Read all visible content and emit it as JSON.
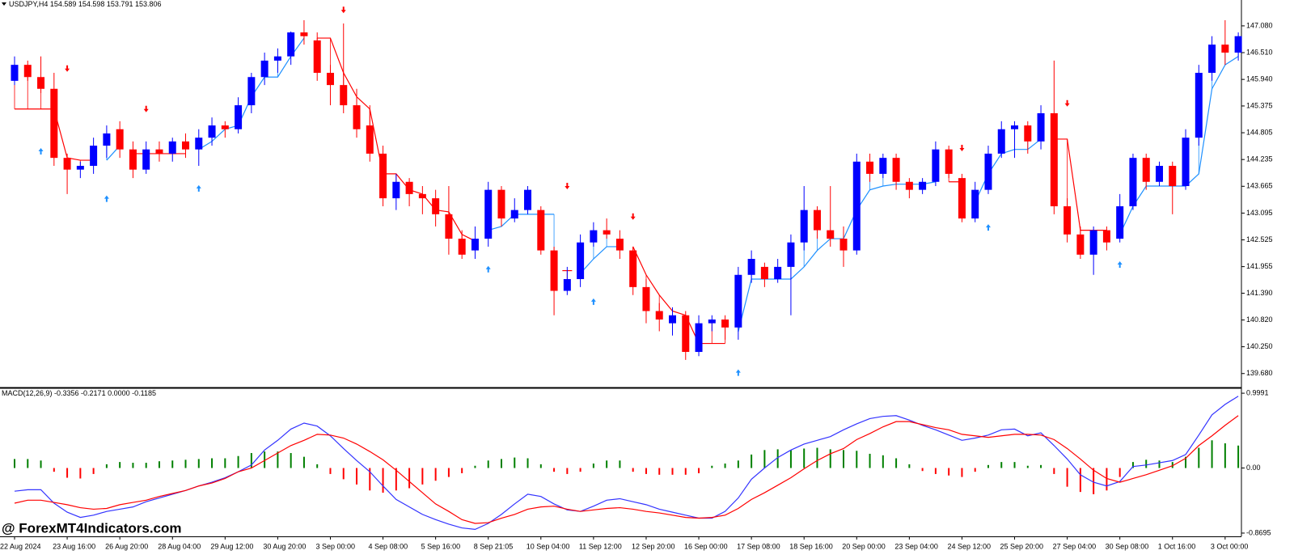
{
  "chart_data": [
    {
      "type": "candlestick",
      "title": "USDJPY,H4  154.589 154.598 153.791 153.806",
      "categories": [
        "22 Aug 2024",
        null,
        null,
        null,
        "23 Aug 16:00",
        null,
        null,
        null,
        "26 Aug 20:00",
        null,
        null,
        null,
        "28 Aug 04:00",
        null,
        null,
        null,
        "29 Aug 12:00",
        null,
        null,
        null,
        "30 Aug 20:00",
        null,
        null,
        null,
        "3 Sep 00:00",
        null,
        null,
        null,
        "4 Sep 08:00",
        null,
        null,
        null,
        "5 Sep 16:00",
        null,
        null,
        null,
        "8 Sep 21:05",
        null,
        null,
        null,
        "10 Sep 04:00",
        null,
        null,
        null,
        "11 Sep 12:00",
        null,
        null,
        null,
        "12 Sep 20:00",
        null,
        null,
        null,
        "16 Sep 00:00",
        null,
        null,
        null,
        "17 Sep 08:00",
        null,
        null,
        null,
        "18 Sep 16:00",
        null,
        null,
        null,
        "20 Sep 00:00",
        null,
        null,
        null,
        "23 Sep 04:00",
        null,
        null,
        null,
        "24 Sep 12:00",
        null,
        null,
        null,
        "25 Sep 20:00",
        null,
        null,
        null,
        "27 Sep 04:00",
        null,
        null,
        null,
        "30 Sep 08:00",
        null,
        null,
        null,
        "1 Oct 16:00",
        null,
        null,
        null,
        "3 Oct 00:00",
        null
      ],
      "open": [
        145.91,
        146.25,
        145.99,
        145.74,
        144.27,
        144.02,
        144.1,
        144.53,
        144.88,
        144.45,
        144.02,
        144.45,
        144.36,
        144.62,
        144.45,
        144.7,
        144.96,
        144.88,
        145.39,
        145.99,
        146.34,
        146.43,
        146.94,
        146.77,
        146.08,
        145.82,
        145.39,
        144.96,
        144.36,
        143.41,
        143.76,
        143.5,
        143.41,
        143.07,
        142.55,
        142.3,
        142.55,
        143.59,
        142.98,
        143.16,
        143.16,
        142.3,
        141.44,
        141.69,
        142.47,
        142.73,
        142.55,
        142.3,
        141.52,
        141.01,
        140.75,
        140.92,
        140.14,
        140.75,
        140.83,
        140.66,
        141.78,
        141.95,
        141.69,
        141.95,
        142.47,
        143.16,
        142.73,
        142.55,
        142.3,
        144.19,
        143.93,
        144.27,
        143.76,
        143.59,
        143.76,
        144.45,
        143.84,
        142.98,
        143.59,
        144.36,
        144.88,
        144.96,
        144.62,
        145.22,
        143.24,
        142.64,
        142.21,
        142.73,
        142.55,
        143.24,
        144.27,
        143.76,
        144.1,
        143.67,
        144.7,
        146.08,
        146.68,
        146.51
      ],
      "high": [
        146.43,
        146.34,
        146.43,
        146.08,
        144.36,
        144.19,
        144.7,
        144.96,
        145.05,
        144.62,
        144.62,
        144.62,
        144.7,
        144.79,
        144.88,
        145.13,
        145.05,
        145.56,
        146.08,
        146.51,
        146.6,
        146.96,
        147.2,
        146.94,
        146.25,
        147.13,
        145.74,
        145.39,
        144.53,
        143.93,
        143.84,
        143.67,
        143.59,
        143.67,
        142.73,
        142.81,
        143.76,
        143.67,
        143.41,
        143.67,
        143.24,
        142.38,
        141.95,
        142.64,
        142.9,
        142.98,
        142.73,
        142.38,
        141.69,
        141.18,
        141.09,
        141.01,
        140.92,
        140.92,
        140.92,
        141.95,
        142.3,
        142.04,
        142.12,
        142.64,
        143.67,
        143.24,
        143.67,
        142.81,
        144.36,
        144.36,
        144.36,
        144.36,
        143.84,
        143.84,
        144.62,
        144.53,
        143.93,
        143.76,
        144.53,
        145.05,
        145.05,
        145.05,
        145.39,
        146.34,
        143.41,
        142.81,
        142.81,
        142.81,
        143.5,
        144.36,
        144.36,
        144.19,
        144.19,
        144.88,
        146.25,
        146.86,
        147.2,
        146.94
      ],
      "low": [
        145.82,
        145.91,
        145.65,
        144.1,
        143.5,
        143.84,
        143.93,
        144.27,
        144.27,
        143.84,
        143.93,
        144.19,
        144.19,
        144.27,
        144.1,
        144.53,
        144.7,
        144.79,
        145.22,
        145.82,
        146.08,
        146.25,
        146.68,
        145.91,
        145.39,
        145.22,
        144.7,
        144.19,
        143.24,
        143.16,
        143.24,
        143.07,
        142.81,
        142.21,
        142.12,
        142.12,
        142.38,
        142.81,
        142.9,
        143.07,
        142.21,
        140.92,
        141.35,
        141.52,
        142.38,
        142.55,
        142.12,
        141.35,
        140.75,
        140.58,
        140.49,
        139.97,
        140.05,
        140.58,
        140.4,
        140.4,
        141.61,
        141.52,
        141.61,
        140.92,
        142.3,
        142.55,
        142.38,
        141.95,
        142.21,
        143.76,
        143.84,
        143.59,
        143.41,
        143.5,
        143.67,
        143.84,
        142.9,
        142.9,
        143.5,
        144.27,
        144.27,
        144.36,
        144.45,
        143.07,
        142.47,
        142.12,
        141.78,
        142.3,
        142.47,
        143.16,
        143.59,
        143.67,
        143.07,
        143.59,
        144.53,
        145.91,
        146.25,
        146.34
      ],
      "close": [
        146.25,
        145.99,
        145.74,
        144.27,
        144.02,
        144.1,
        144.53,
        144.79,
        144.45,
        144.02,
        144.45,
        144.36,
        144.62,
        144.45,
        144.7,
        144.96,
        144.88,
        145.39,
        145.99,
        146.34,
        146.43,
        146.94,
        146.86,
        146.08,
        145.82,
        145.39,
        144.88,
        144.36,
        143.41,
        143.76,
        143.5,
        143.41,
        143.07,
        142.55,
        142.21,
        142.55,
        143.59,
        142.98,
        143.16,
        143.59,
        142.3,
        141.44,
        141.69,
        142.47,
        142.73,
        142.64,
        142.3,
        141.52,
        141.01,
        140.83,
        140.92,
        140.14,
        140.75,
        140.83,
        140.66,
        141.78,
        142.12,
        141.69,
        141.95,
        142.47,
        143.16,
        142.73,
        142.55,
        142.3,
        144.19,
        143.93,
        144.27,
        143.76,
        143.59,
        143.76,
        144.45,
        143.93,
        142.98,
        143.59,
        144.36,
        144.88,
        144.96,
        144.62,
        145.22,
        143.24,
        142.64,
        142.21,
        142.73,
        142.47,
        143.24,
        144.27,
        143.76,
        144.1,
        143.67,
        144.7,
        146.08,
        146.68,
        146.51,
        146.86
      ],
      "trend_up": [
        null,
        null,
        null,
        null,
        null,
        null,
        null,
        144.22,
        144.53,
        null,
        null,
        null,
        null,
        null,
        144.45,
        144.62,
        144.88,
        144.96,
        145.57,
        145.99,
        145.99,
        146.43,
        146.82,
        null,
        null,
        null,
        null,
        null,
        null,
        null,
        null,
        null,
        null,
        null,
        null,
        null,
        142.73,
        142.81,
        143.07,
        143.07,
        143.07,
        143.07,
        null,
        141.81,
        142.12,
        142.38,
        142.38,
        null,
        null,
        null,
        null,
        null,
        null,
        null,
        null,
        140.57,
        141.69,
        141.69,
        141.69,
        141.69,
        141.95,
        142.3,
        142.55,
        142.55,
        143.16,
        143.59,
        143.67,
        143.71,
        143.71,
        143.71,
        143.76,
        null,
        null,
        143.33,
        143.93,
        144.36,
        144.45,
        144.45,
        144.67,
        null,
        null,
        null,
        null,
        null,
        142.64,
        143.24,
        143.67,
        143.67,
        143.67,
        143.67,
        143.93,
        145.74,
        146.25,
        146.43
      ],
      "trend_down": [
        145.31,
        145.31,
        145.31,
        145.31,
        144.27,
        144.22,
        144.22,
        null,
        null,
        144.36,
        144.36,
        144.36,
        144.36,
        144.36,
        null,
        null,
        null,
        null,
        null,
        null,
        null,
        null,
        null,
        146.82,
        146.82,
        146.08,
        145.57,
        145.31,
        143.93,
        143.93,
        143.59,
        143.5,
        143.16,
        143.12,
        142.64,
        142.5,
        null,
        null,
        null,
        null,
        null,
        null,
        141.87,
        null,
        null,
        null,
        null,
        142.38,
        141.78,
        141.35,
        141.01,
        140.92,
        140.32,
        140.32,
        140.32,
        null,
        null,
        null,
        null,
        null,
        null,
        null,
        null,
        null,
        null,
        null,
        null,
        null,
        null,
        null,
        null,
        143.76,
        143.76,
        null,
        null,
        null,
        null,
        null,
        null,
        144.67,
        144.67,
        142.73,
        142.73,
        142.73,
        null,
        null,
        null,
        null,
        null,
        null,
        null,
        null,
        null,
        null
      ],
      "buy_signals": [
        null,
        null,
        144.41,
        null,
        null,
        null,
        null,
        143.4,
        null,
        null,
        null,
        null,
        null,
        null,
        143.62,
        null,
        null,
        null,
        null,
        null,
        null,
        null,
        null,
        null,
        null,
        null,
        null,
        null,
        null,
        null,
        null,
        null,
        null,
        null,
        null,
        null,
        141.9,
        null,
        null,
        null,
        null,
        null,
        null,
        null,
        141.21,
        null,
        null,
        null,
        null,
        null,
        null,
        null,
        null,
        null,
        null,
        139.7,
        null,
        null,
        null,
        null,
        null,
        null,
        null,
        null,
        null,
        null,
        null,
        null,
        null,
        null,
        null,
        null,
        null,
        null,
        142.79,
        null,
        null,
        null,
        null,
        null,
        null,
        null,
        null,
        null,
        142.0,
        null,
        null,
        null,
        null,
        null,
        null,
        null,
        null,
        null
      ],
      "sell_signals": [
        null,
        null,
        null,
        null,
        146.17,
        null,
        null,
        null,
        null,
        null,
        145.31,
        null,
        null,
        null,
        null,
        null,
        null,
        null,
        null,
        null,
        null,
        null,
        null,
        null,
        null,
        147.42,
        null,
        null,
        null,
        null,
        null,
        null,
        null,
        null,
        null,
        null,
        null,
        null,
        null,
        null,
        null,
        null,
        143.67,
        null,
        null,
        null,
        null,
        143.02,
        null,
        null,
        null,
        null,
        null,
        null,
        null,
        null,
        null,
        null,
        null,
        null,
        null,
        null,
        null,
        null,
        null,
        null,
        null,
        null,
        null,
        null,
        null,
        null,
        144.48,
        null,
        null,
        null,
        null,
        null,
        null,
        null,
        145.43,
        null,
        null,
        null,
        null,
        null,
        null,
        null,
        null,
        null,
        null,
        null,
        null,
        null
      ],
      "up_color": "#0000ff",
      "down_color": "#ff0000",
      "trend_up_color": "#1e90ff",
      "trend_down_color": "#ff0000",
      "ylim": [
        139.4,
        147.63
      ],
      "yticks": [
        {
          "value": 147.08,
          "label": "147.080"
        },
        {
          "value": 146.51,
          "label": "146.510"
        },
        {
          "value": 145.94,
          "label": "145.940"
        },
        145.375,
        144.805,
        144.235,
        143.665,
        143.095,
        142.525,
        141.955,
        {
          "value": 141.39,
          "label": "141.390"
        },
        {
          "value": 140.82,
          "label": "140.820"
        },
        {
          "value": 140.25,
          "label": "140.250"
        },
        {
          "value": 139.68,
          "label": "139.680"
        }
      ]
    },
    {
      "type": "macd",
      "title": "MACD(12,26,9) -0.3356 -0.2171 0.0000 -0.1185",
      "histogram": [
        0.12,
        0.12,
        0.1,
        -0.05,
        -0.13,
        -0.14,
        -0.08,
        0.05,
        0.08,
        0.07,
        0.07,
        0.09,
        0.1,
        0.11,
        0.12,
        0.13,
        0.13,
        0.16,
        0.2,
        0.22,
        0.22,
        0.2,
        0.15,
        0.05,
        -0.08,
        -0.15,
        -0.22,
        -0.3,
        -0.33,
        -0.3,
        -0.27,
        -0.22,
        -0.17,
        -0.12,
        -0.07,
        0.03,
        0.1,
        0.12,
        0.14,
        0.13,
        0.05,
        -0.05,
        -0.08,
        -0.05,
        0.06,
        0.1,
        0.1,
        -0.05,
        -0.08,
        -0.09,
        -0.09,
        -0.09,
        -0.07,
        0.03,
        0.06,
        0.1,
        0.18,
        0.24,
        0.25,
        0.24,
        0.26,
        0.27,
        0.25,
        0.24,
        0.23,
        0.19,
        0.17,
        0.13,
        0.05,
        -0.04,
        -0.08,
        -0.1,
        -0.12,
        -0.05,
        0.04,
        0.08,
        0.08,
        0.03,
        0.04,
        -0.08,
        -0.25,
        -0.32,
        -0.35,
        -0.3,
        -0.12,
        0.08,
        0.11,
        0.1,
        0.08,
        0.15,
        0.27,
        0.37,
        0.33,
        0.3
      ],
      "macd": [
        -0.31,
        -0.29,
        -0.29,
        -0.47,
        -0.59,
        -0.66,
        -0.63,
        -0.58,
        -0.55,
        -0.52,
        -0.45,
        -0.4,
        -0.35,
        -0.3,
        -0.24,
        -0.19,
        -0.13,
        -0.05,
        0.04,
        0.24,
        0.37,
        0.52,
        0.6,
        0.56,
        0.43,
        0.26,
        0.1,
        -0.05,
        -0.24,
        -0.42,
        -0.52,
        -0.62,
        -0.69,
        -0.75,
        -0.8,
        -0.82,
        -0.74,
        -0.62,
        -0.48,
        -0.35,
        -0.38,
        -0.48,
        -0.56,
        -0.58,
        -0.51,
        -0.43,
        -0.41,
        -0.45,
        -0.49,
        -0.55,
        -0.59,
        -0.63,
        -0.67,
        -0.67,
        -0.58,
        -0.4,
        -0.15,
        0.0,
        0.14,
        0.24,
        0.32,
        0.37,
        0.42,
        0.51,
        0.59,
        0.66,
        0.69,
        0.7,
        0.64,
        0.57,
        0.51,
        0.44,
        0.37,
        0.4,
        0.44,
        0.51,
        0.52,
        0.43,
        0.47,
        0.3,
        0.12,
        -0.09,
        -0.19,
        -0.24,
        -0.18,
        0.02,
        0.04,
        0.07,
        0.1,
        0.18,
        0.44,
        0.71,
        0.85,
        0.96
      ],
      "signal": [
        -0.47,
        -0.43,
        -0.43,
        -0.46,
        -0.49,
        -0.53,
        -0.55,
        -0.54,
        -0.49,
        -0.46,
        -0.43,
        -0.38,
        -0.34,
        -0.3,
        -0.24,
        -0.2,
        -0.14,
        -0.05,
        0.0,
        0.1,
        0.2,
        0.3,
        0.37,
        0.45,
        0.44,
        0.4,
        0.32,
        0.22,
        0.11,
        -0.03,
        -0.18,
        -0.33,
        -0.48,
        -0.58,
        -0.69,
        -0.74,
        -0.73,
        -0.67,
        -0.62,
        -0.55,
        -0.52,
        -0.51,
        -0.55,
        -0.58,
        -0.56,
        -0.54,
        -0.53,
        -0.55,
        -0.58,
        -0.6,
        -0.63,
        -0.66,
        -0.67,
        -0.66,
        -0.63,
        -0.54,
        -0.42,
        -0.33,
        -0.23,
        -0.13,
        -0.01,
        0.1,
        0.19,
        0.26,
        0.38,
        0.46,
        0.55,
        0.62,
        0.62,
        0.58,
        0.54,
        0.51,
        0.45,
        0.43,
        0.41,
        0.43,
        0.45,
        0.45,
        0.44,
        0.38,
        0.26,
        0.12,
        -0.03,
        -0.14,
        -0.19,
        -0.14,
        -0.09,
        -0.03,
        0.03,
        0.13,
        0.3,
        0.43,
        0.57,
        0.7
      ],
      "histogram_up_color": "#008000",
      "histogram_down_color": "#ff0000",
      "macd_color": "#3333ff",
      "signal_color": "#ff0000",
      "ylim": [
        -0.913,
        1.054
      ],
      "yticks": [
        0.9991,
        {
          "value": 0,
          "label": "0.00"
        },
        -0.8695
      ]
    }
  ],
  "watermark": "@ ForexMT4Indicators.com"
}
